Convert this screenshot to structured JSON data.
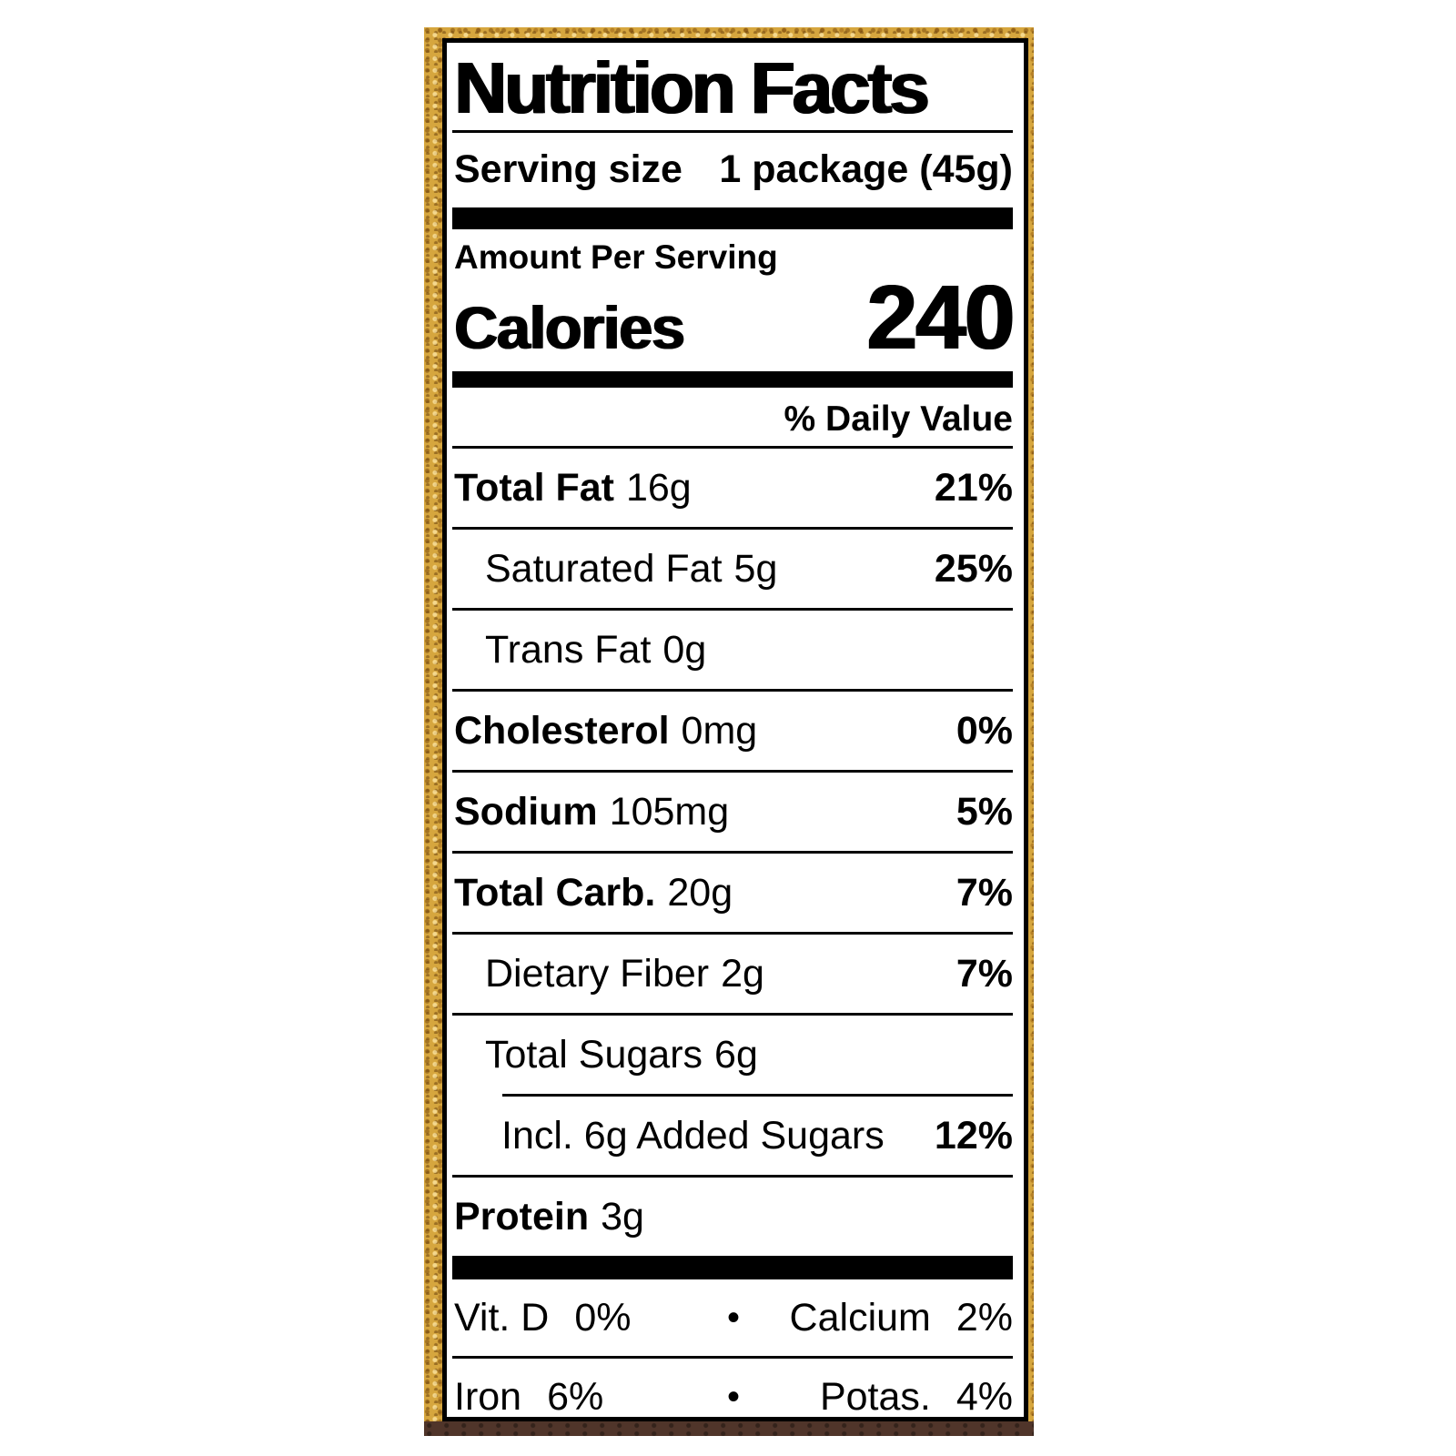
{
  "label": {
    "title": "Nutrition Facts",
    "serving": {
      "label": "Serving size",
      "value": "1 package (45g)"
    },
    "amount_per_serving": "Amount Per Serving",
    "calories": {
      "label": "Calories",
      "value": "240"
    },
    "daily_value_header": "% Daily Value",
    "nutrients": [
      {
        "name": "Total Fat",
        "amount": "16g",
        "dv": "21%"
      },
      {
        "name": "Saturated Fat",
        "amount": "5g",
        "dv": "25%"
      },
      {
        "name": "Trans Fat",
        "amount": "0g",
        "dv": ""
      },
      {
        "name": "Cholesterol",
        "amount": "0mg",
        "dv": "0%"
      },
      {
        "name": "Sodium",
        "amount": "105mg",
        "dv": "5%"
      },
      {
        "name": "Total Carb.",
        "amount": "20g",
        "dv": "7%"
      },
      {
        "name": "Dietary Fiber",
        "amount": "2g",
        "dv": "7%"
      },
      {
        "name": "Total Sugars",
        "amount": "6g",
        "dv": ""
      },
      {
        "name": "Incl. 6g Added Sugars",
        "amount": "",
        "dv": "12%"
      },
      {
        "name": "Protein",
        "amount": "3g",
        "dv": ""
      }
    ],
    "micros": [
      {
        "left": {
          "name": "Vit. D",
          "value": "0%"
        },
        "right": {
          "name": "Calcium",
          "value": "2%"
        }
      },
      {
        "left": {
          "name": "Iron",
          "value": "6%"
        },
        "right": {
          "name": "Potas.",
          "value": "4%"
        }
      }
    ],
    "bullet": "•",
    "colors": {
      "text": "#000000",
      "label_background": "#ffffff",
      "package_border_gold": "#d6a63e",
      "bottom_strip_brown": "#50352a"
    }
  }
}
